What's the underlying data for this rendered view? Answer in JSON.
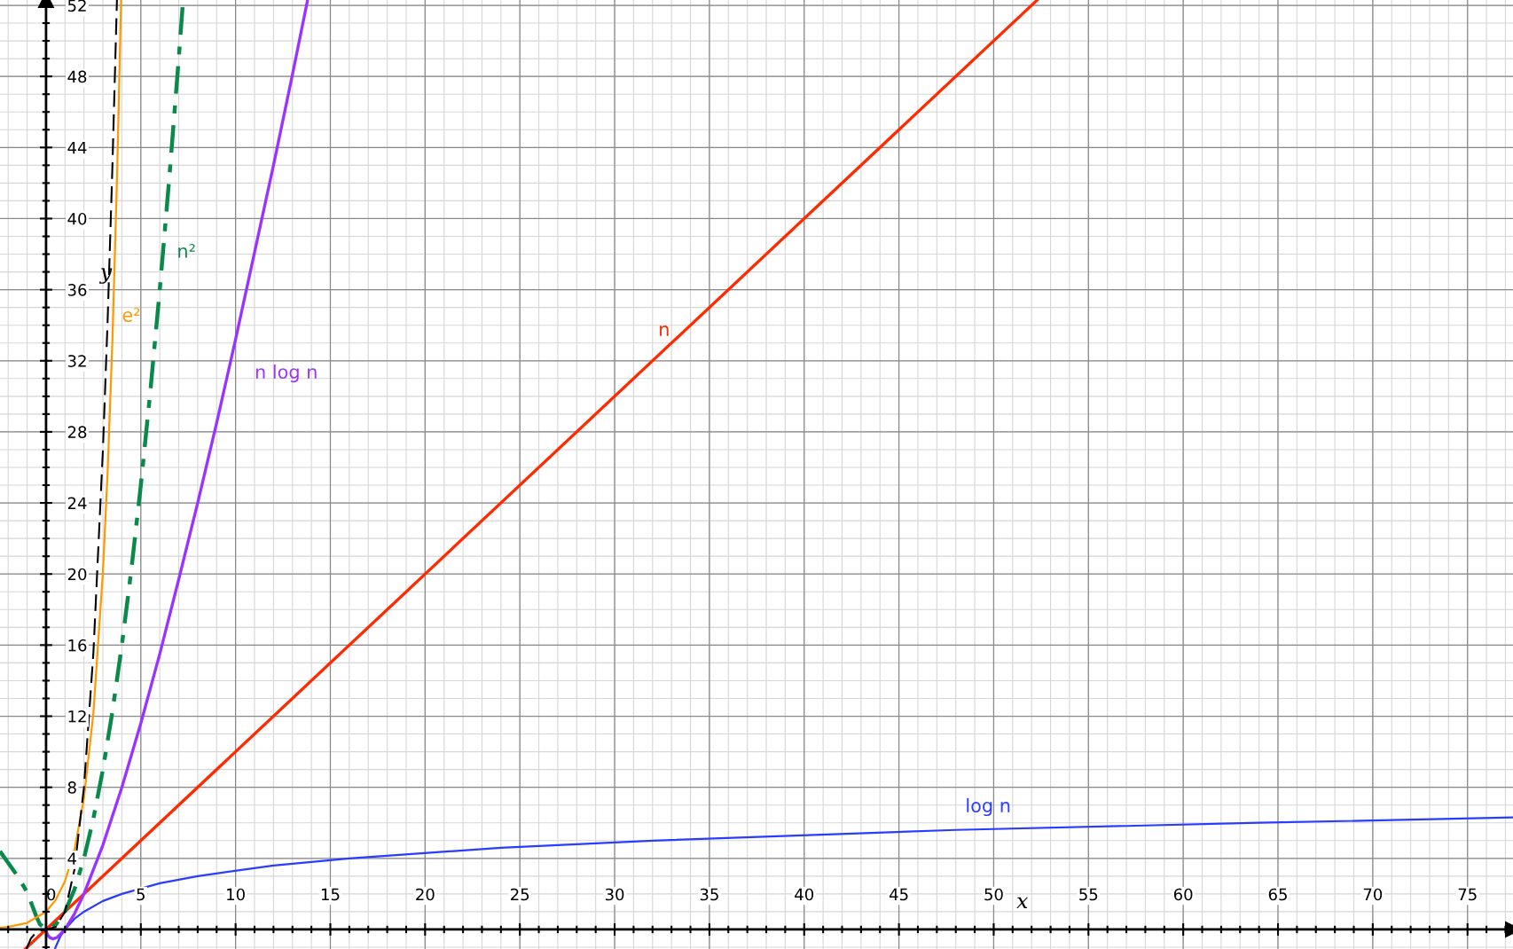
{
  "chart_data": {
    "type": "line",
    "xlabel": "x",
    "ylabel": "y",
    "xlim": [
      -2.43,
      77.4
    ],
    "ylim": [
      -1.1,
      52.3
    ],
    "xticks": [
      0,
      5,
      10,
      15,
      20,
      25,
      30,
      35,
      40,
      45,
      50,
      55,
      60,
      65,
      70,
      75
    ],
    "yticks": [
      4,
      8,
      12,
      16,
      20,
      24,
      28,
      32,
      36,
      40,
      44,
      48,
      52
    ],
    "grid": true,
    "legend": false,
    "marker": "none",
    "series": [
      {
        "name": "log n",
        "color": "#2a3cff",
        "line_style": "solid",
        "x": [
          0.47,
          0.5,
          0.75,
          1,
          1.5,
          2,
          3,
          4,
          6,
          8,
          12,
          16,
          24,
          32,
          48,
          64,
          77.4
        ],
        "values": [
          -1.1,
          -1,
          -0.4,
          0,
          0.6,
          1,
          1.6,
          2,
          2.6,
          3,
          3.6,
          4,
          4.6,
          5,
          5.6,
          6,
          6.3
        ]
      },
      {
        "name": "n",
        "color": "#ff2a00",
        "line_style": "solid",
        "x": [
          -1.1,
          52.3
        ],
        "values": [
          -1.1,
          52.3
        ]
      },
      {
        "name": "n log n",
        "color": "#9933ff",
        "line_style": "solid",
        "x": [
          0.02,
          0.05,
          0.1,
          0.2,
          0.37,
          0.6,
          1,
          1.5,
          2,
          3,
          4,
          5,
          6,
          7,
          8,
          9,
          10,
          11,
          12,
          13,
          13.8
        ],
        "values": [
          -0.11,
          -0.22,
          -0.33,
          -0.46,
          -0.53,
          -0.44,
          0,
          0.88,
          2,
          4.75,
          8,
          11.6,
          15.5,
          19.7,
          24,
          28.5,
          33.2,
          38.1,
          43,
          48.1,
          52.3
        ]
      },
      {
        "name": "n²",
        "color": "#0a8a4a",
        "line_style": "dashdot",
        "x": [
          -2.43,
          -1.5,
          -1,
          -0.5,
          -0.33,
          0,
          0.5,
          1,
          1.5,
          2,
          2.5,
          3,
          3.5,
          4,
          4.5,
          5,
          5.5,
          6,
          6.5,
          7,
          7.23
        ],
        "values": [
          4.4,
          3,
          2.1,
          0.7,
          0.3,
          0,
          0.25,
          1,
          2.25,
          4,
          6.25,
          9,
          12.25,
          16,
          20.25,
          25,
          30.25,
          36,
          42.25,
          49,
          52.3
        ]
      },
      {
        "name": "e²",
        "color": "#ff9900",
        "line_style": "solid",
        "x": [
          -2.43,
          -2,
          -1,
          0,
          0.5,
          1,
          1.5,
          2,
          2.5,
          3,
          3.25,
          3.5,
          3.75,
          3.96
        ],
        "values": [
          0.09,
          0.14,
          0.37,
          1,
          1.65,
          2.72,
          4.48,
          7.39,
          12.2,
          20.1,
          25.8,
          33.1,
          42.5,
          52.3
        ]
      },
      {
        "color": "#000000",
        "line_style": "dashed",
        "x": [
          -1.03,
          -0.8,
          -0.5,
          0,
          0.5,
          1,
          1.5,
          2,
          2.5,
          3,
          3.25,
          3.5,
          3.74
        ],
        "values": [
          -1.09,
          -0.51,
          -0.13,
          0,
          0.13,
          1,
          3.38,
          8,
          15.6,
          27,
          34.3,
          42.9,
          52.3
        ]
      }
    ]
  }
}
